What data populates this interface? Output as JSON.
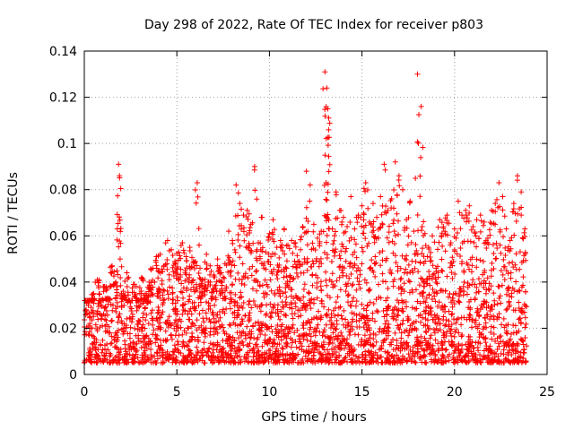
{
  "chart_data": {
    "type": "scatter",
    "title": "Day 298 of 2022, Rate Of TEC Index for receiver p803",
    "xlabel": "GPS time / hours",
    "ylabel": "ROTI / TECUs",
    "xlim": [
      0,
      25
    ],
    "ylim": [
      0,
      0.14
    ],
    "xticks": [
      0,
      5,
      10,
      15,
      20,
      25
    ],
    "yticks": [
      0,
      0.02,
      0.04,
      0.06,
      0.08,
      0.1,
      0.12,
      0.14
    ],
    "xtick_labels": [
      "0",
      "5",
      "10",
      "15",
      "20",
      "25"
    ],
    "ytick_labels": [
      "0",
      "0.02",
      "0.04",
      "0.06",
      "0.08",
      "0.1",
      "0.12",
      "0.14"
    ],
    "grid": true,
    "marker": "+",
    "color": "#ff0000",
    "series": [
      {
        "name": "ROTI p803",
        "x": [
          0.1,
          0.3,
          0.5,
          0.7,
          0.9,
          1.1,
          1.3,
          1.5,
          1.7,
          1.85,
          1.9,
          2.1,
          2.3,
          2.5,
          2.7,
          2.9,
          3.1,
          3.3,
          3.5,
          3.7,
          3.9,
          4.1,
          4.3,
          4.5,
          4.7,
          4.9,
          5.1,
          5.3,
          5.5,
          5.7,
          5.9,
          6.1,
          6.25,
          6.4,
          6.6,
          6.8,
          7.0,
          7.2,
          7.4,
          7.6,
          7.8,
          8.0,
          8.2,
          8.4,
          8.6,
          8.8,
          9.0,
          9.2,
          9.4,
          9.6,
          9.8,
          10.0,
          10.2,
          10.4,
          10.6,
          10.8,
          11.0,
          11.2,
          11.4,
          11.6,
          11.8,
          12.0,
          12.2,
          12.4,
          12.6,
          12.8,
          13.0,
          13.1,
          13.15,
          13.2,
          13.4,
          13.6,
          13.8,
          14.0,
          14.2,
          14.4,
          14.6,
          14.8,
          15.0,
          15.2,
          15.4,
          15.6,
          15.8,
          16.0,
          16.2,
          16.4,
          16.6,
          16.8,
          17.0,
          17.2,
          17.4,
          17.6,
          17.8,
          18.0,
          18.2,
          18.25,
          18.4,
          18.6,
          18.8,
          19.0,
          19.2,
          19.4,
          19.6,
          19.8,
          20.0,
          20.2,
          20.4,
          20.6,
          20.8,
          21.0,
          21.2,
          21.4,
          21.6,
          21.8,
          22.0,
          22.2,
          22.4,
          22.6,
          22.8,
          23.0,
          23.2,
          23.4,
          23.6,
          23.8
        ],
        "y": [
          0.028,
          0.022,
          0.035,
          0.041,
          0.03,
          0.038,
          0.033,
          0.047,
          0.04,
          0.091,
          0.086,
          0.036,
          0.044,
          0.031,
          0.039,
          0.029,
          0.042,
          0.035,
          0.04,
          0.046,
          0.051,
          0.052,
          0.047,
          0.058,
          0.054,
          0.049,
          0.053,
          0.057,
          0.051,
          0.055,
          0.049,
          0.083,
          0.046,
          0.041,
          0.052,
          0.047,
          0.043,
          0.05,
          0.044,
          0.048,
          0.062,
          0.058,
          0.082,
          0.074,
          0.069,
          0.071,
          0.065,
          0.09,
          0.057,
          0.068,
          0.053,
          0.061,
          0.067,
          0.055,
          0.058,
          0.063,
          0.056,
          0.058,
          0.057,
          0.049,
          0.064,
          0.088,
          0.082,
          0.065,
          0.059,
          0.062,
          0.131,
          0.124,
          0.115,
          0.111,
          0.063,
          0.079,
          0.071,
          0.068,
          0.064,
          0.077,
          0.063,
          0.069,
          0.073,
          0.083,
          0.066,
          0.074,
          0.068,
          0.077,
          0.091,
          0.071,
          0.076,
          0.092,
          0.086,
          0.08,
          0.067,
          0.075,
          0.062,
          0.13,
          0.116,
          0.064,
          0.061,
          0.055,
          0.06,
          0.046,
          0.067,
          0.064,
          0.069,
          0.057,
          0.063,
          0.075,
          0.069,
          0.071,
          0.073,
          0.064,
          0.067,
          0.069,
          0.066,
          0.059,
          0.071,
          0.074,
          0.083,
          0.077,
          0.063,
          0.058,
          0.074,
          0.086,
          0.079,
          0.063
        ],
        "baseline_band": [
          0.005,
          0.032
        ]
      }
    ]
  }
}
